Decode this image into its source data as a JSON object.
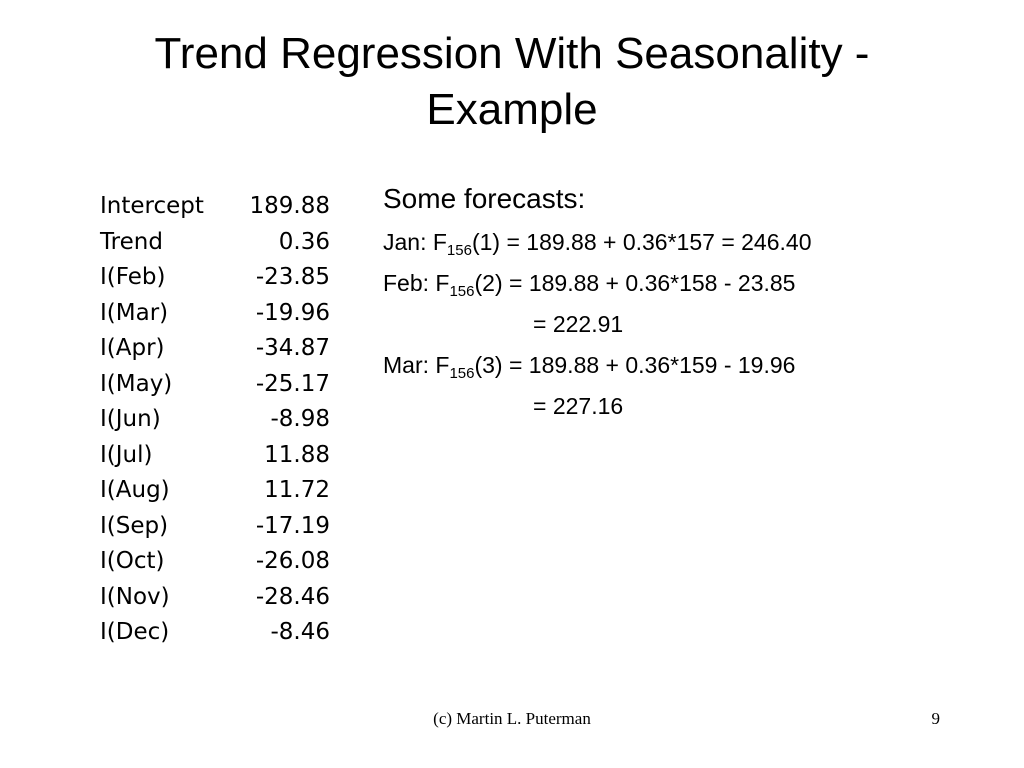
{
  "slide": {
    "title_line1": "Trend Regression With Seasonality -",
    "title_line2": "Example"
  },
  "coefficients": [
    {
      "name": "Intercept",
      "value": "189.88"
    },
    {
      "name": "Trend",
      "value": "0.36"
    },
    {
      "name": "I(Feb)",
      "value": "-23.85"
    },
    {
      "name": "I(Mar)",
      "value": "-19.96"
    },
    {
      "name": "I(Apr)",
      "value": "-34.87"
    },
    {
      "name": "I(May)",
      "value": "-25.17"
    },
    {
      "name": "I(Jun)",
      "value": "-8.98"
    },
    {
      "name": "I(Jul)",
      "value": "11.88"
    },
    {
      "name": "I(Aug)",
      "value": "11.72"
    },
    {
      "name": "I(Sep)",
      "value": "-17.19"
    },
    {
      "name": "I(Oct)",
      "value": "-26.08"
    },
    {
      "name": "I(Nov)",
      "value": "-28.46"
    },
    {
      "name": "I(Dec)",
      "value": "-8.46"
    }
  ],
  "forecasts": {
    "heading": "Some forecasts:",
    "jan": {
      "prefix": "Jan: F",
      "subscript": "156",
      "rest": "(1) = 189.88 + 0.36*157 = 246.40"
    },
    "feb": {
      "prefix": "Feb: F",
      "subscript": "156",
      "rest": "(2) = 189.88 + 0.36*158 - 23.85",
      "result": "= 222.91"
    },
    "mar": {
      "prefix": "Mar: F",
      "subscript": "156",
      "rest": "(3) = 189.88 + 0.36*159 - 19.96",
      "result": "= 227.16"
    }
  },
  "footer": {
    "credit": "(c) Martin L. Puterman",
    "page_number": "9"
  }
}
